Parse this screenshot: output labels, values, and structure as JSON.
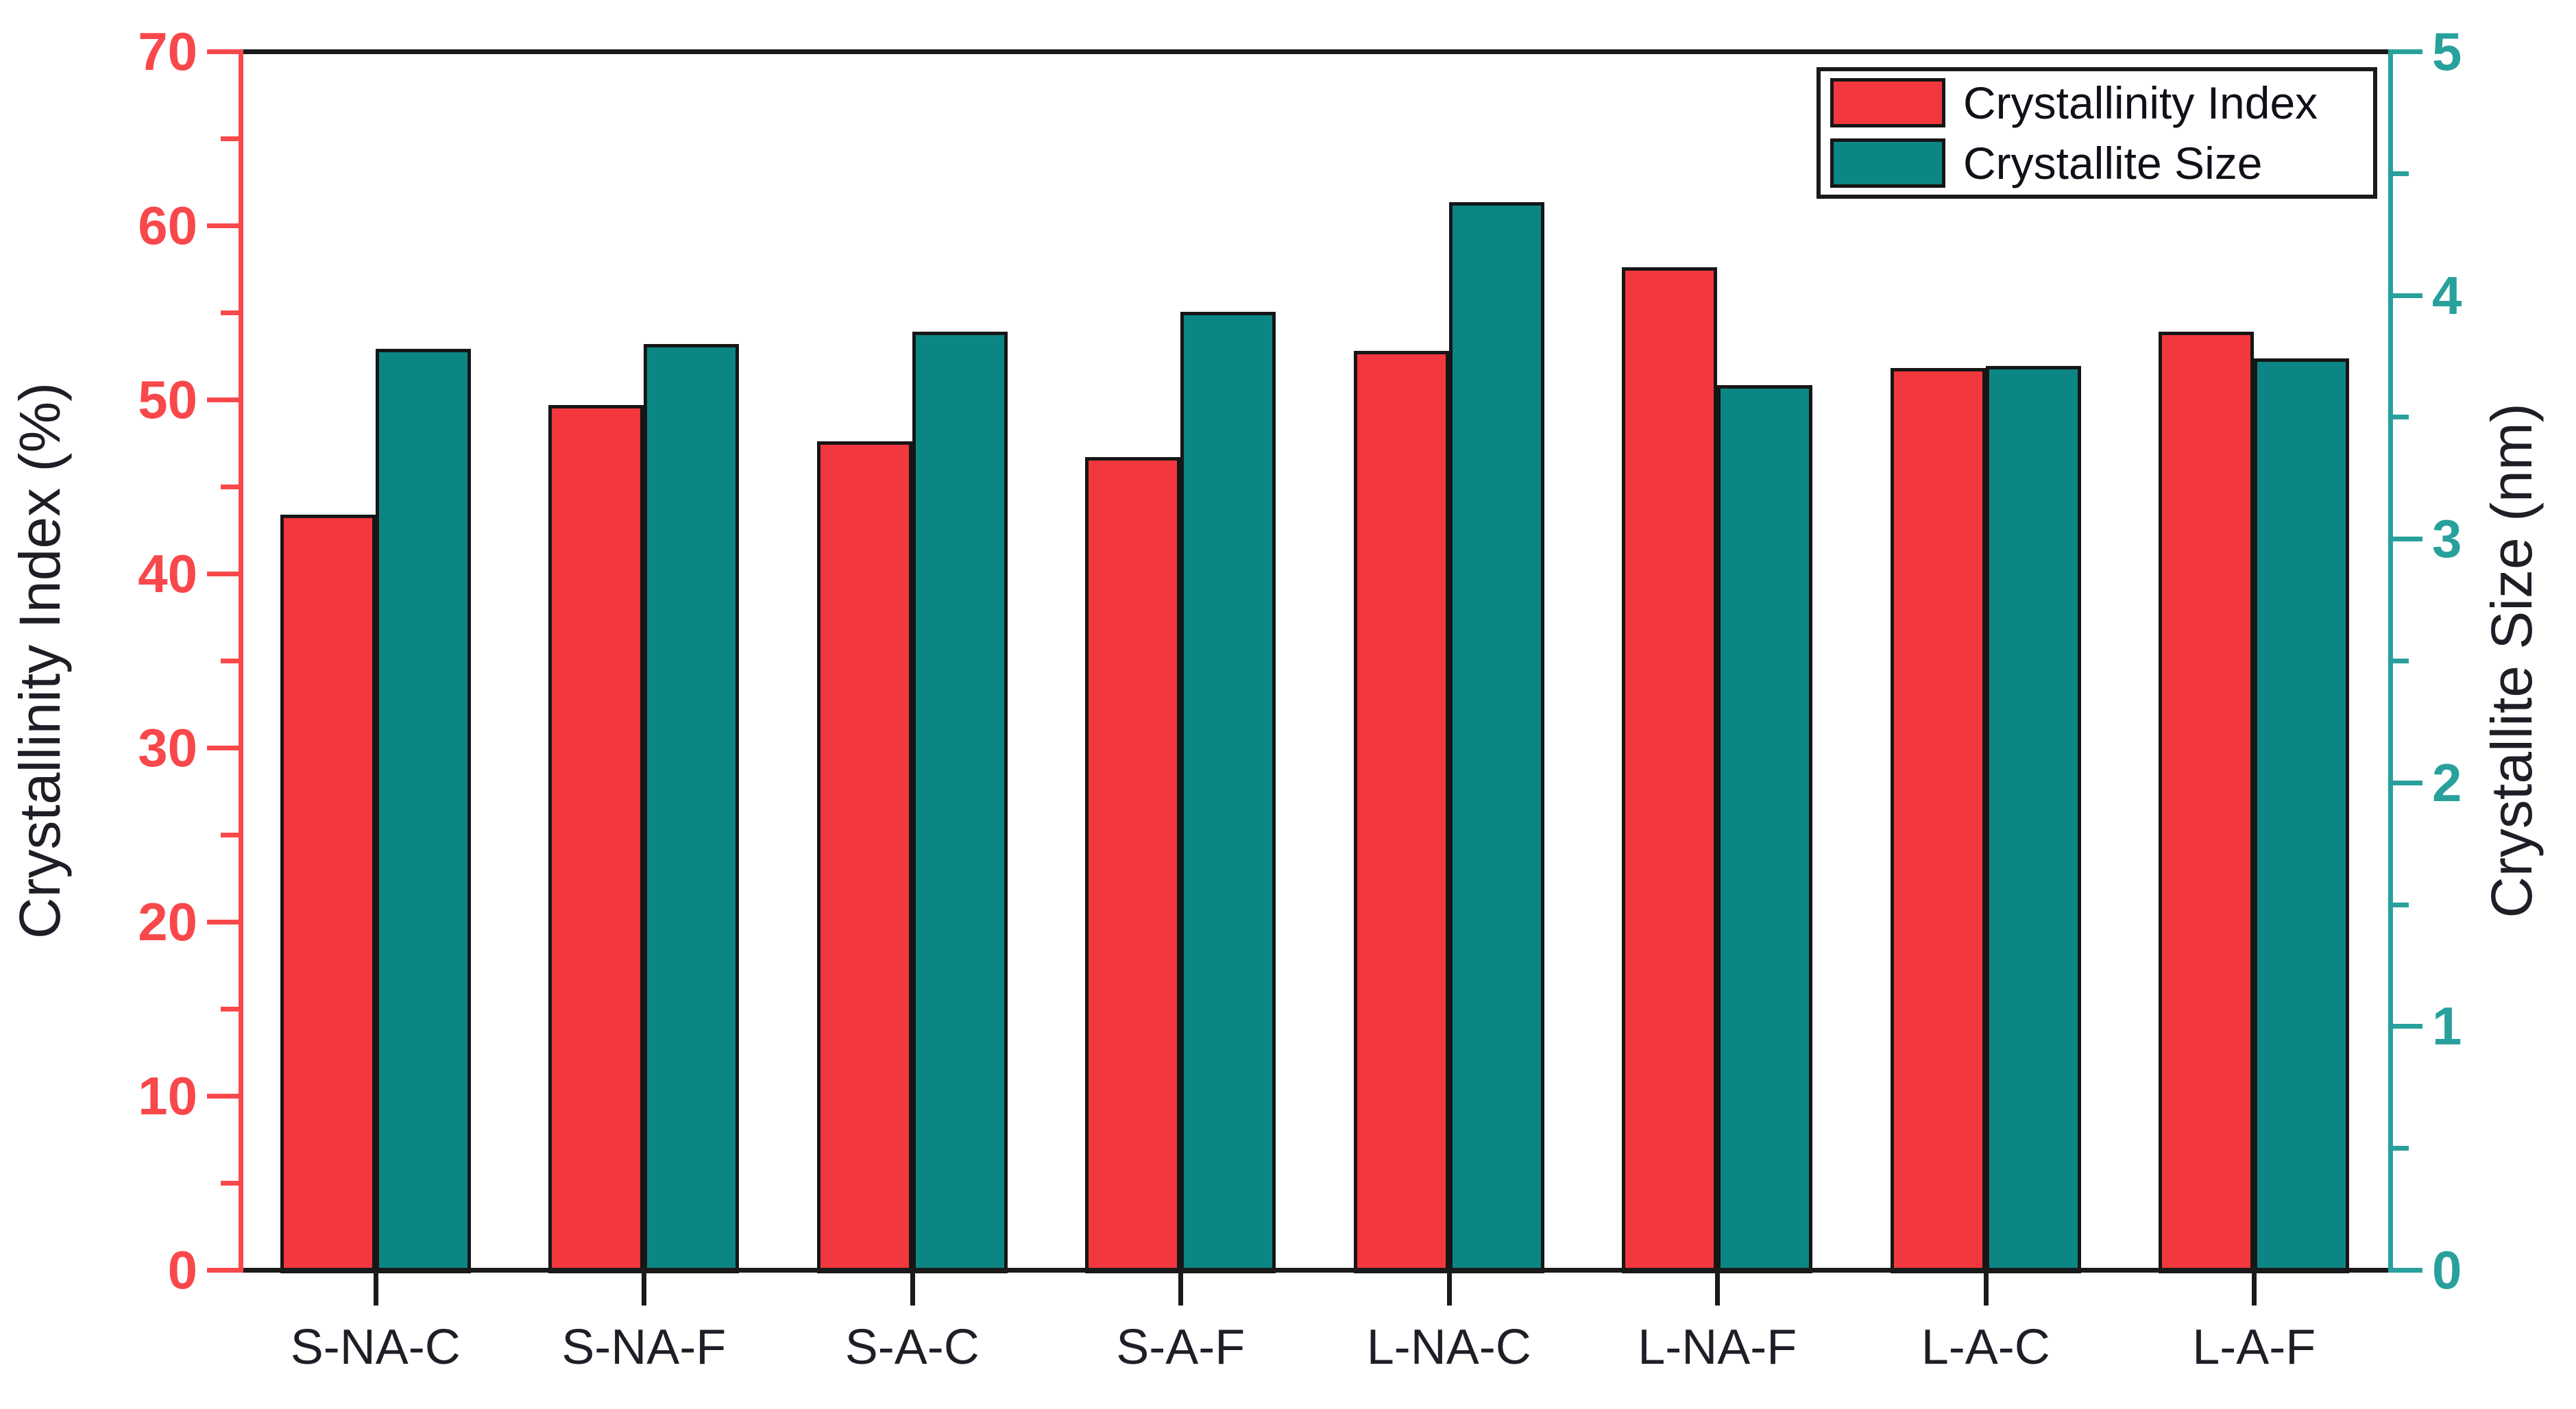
{
  "chart_data": {
    "type": "bar",
    "title": "",
    "categories": [
      "S-NA-C",
      "S-NA-F",
      "S-A-C",
      "S-A-F",
      "L-NA-C",
      "L-NA-F",
      "L-A-C",
      "L-A-F"
    ],
    "series": [
      {
        "name": "Crystallinity Index",
        "axis": "left",
        "color": "#f2383e",
        "values": [
          43.4,
          49.7,
          47.6,
          46.7,
          52.8,
          57.6,
          51.8,
          53.9
        ]
      },
      {
        "name": "Crystallite Size",
        "axis": "right",
        "color": "#0c8684",
        "values": [
          3.78,
          3.8,
          3.85,
          3.93,
          4.38,
          3.63,
          3.71,
          3.74
        ]
      }
    ],
    "left_axis": {
      "label": "Crystallinity Index (%)",
      "min": 0,
      "max": 70,
      "major_step": 10,
      "minor_step": 5,
      "color": "#f8484b",
      "tick_labels": [
        "0",
        "10",
        "20",
        "30",
        "40",
        "50",
        "60",
        "70"
      ]
    },
    "right_axis": {
      "label": "Crystallite Size (nm)",
      "min": 0,
      "max": 5,
      "major_step": 1,
      "minor_step": 0.5,
      "color": "#28a09c",
      "tick_labels": [
        "0",
        "1",
        "2",
        "3",
        "4",
        "5"
      ]
    },
    "grid": false,
    "legend_position": "top-right"
  },
  "legend": {
    "items": [
      {
        "label": "Crystallinity Index",
        "color": "#f2383e"
      },
      {
        "label": "Crystallite Size",
        "color": "#0c8684"
      }
    ]
  }
}
